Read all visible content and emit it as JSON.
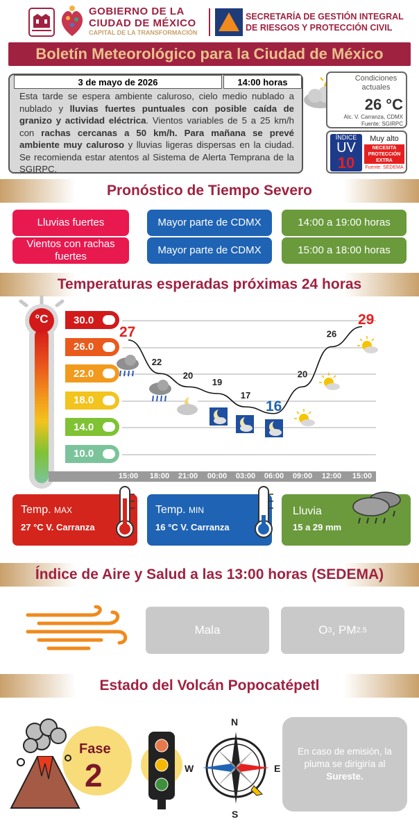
{
  "header": {
    "gob_line1": "GOBIERNO DE LA",
    "gob_line2": "CIUDAD DE MÉXICO",
    "gob_line3": "CAPITAL DE LA TRANSFORMACIÓN",
    "sec_line1": "SECRETARÍA DE GESTIÓN INTEGRAL",
    "sec_line2": "DE RIESGOS Y PROTECCIÓN CIVIL"
  },
  "title": "Boletín Meteorológico para la Ciudad de México",
  "bulletin": {
    "date": "3 de mayo de 2026",
    "time": "14:00 horas",
    "text_html": "Esta tarde se espera ambiente caluroso, cielo medio nublado a nublado y <b>lluvias fuertes puntuales con posible caída de granizo y actividad eléctrica</b>. Vientos variables de 5 a 25 km/h con <b>rachas cercanas a 50 km/h. Para mañana se prevé ambiente muy caluroso</b> y lluvias ligeras dispersas en la ciudad. Se recomienda estar atentos al Sistema de Alerta Temprana de la SGIRPC."
  },
  "current": {
    "label": "Condiciones actuales",
    "temp": "26 °C",
    "place": "Alc. V. Carranza, CDMX",
    "source": "Fuente: SGIRPC"
  },
  "uv": {
    "indice": "ÍNDICE",
    "uv": "UV",
    "value": "10",
    "level": "Muy alto",
    "warning": "NECESITA PROTECCIÓN EXTRA",
    "source": "Fuente: SEDEMA"
  },
  "severe": {
    "title": "Pronóstico de Tiempo Severo",
    "rows": [
      {
        "phenomenon": "Lluvias fuertes",
        "area": "Mayor parte de CDMX",
        "hours": "14:00 a 19:00 horas"
      },
      {
        "phenomenon": "Vientos con rachas fuertes",
        "area": "Mayor parte de CDMX",
        "hours": "15:00 a 18:00 horas"
      }
    ]
  },
  "temps": {
    "title": "Temperaturas esperadas próximas 24 horas",
    "scale": [
      "30.0",
      "26.0",
      "22.0",
      "18.0",
      "14.0",
      "10.0"
    ],
    "scale_colors": [
      "#d21a1a",
      "#ea5a1c",
      "#f29a1d",
      "#f3c31e",
      "#7fc234",
      "#7bc49b"
    ],
    "unit_icon": "°C",
    "hours": [
      "15:00",
      "18:00",
      "21:00",
      "00:00",
      "03:00",
      "06:00",
      "09:00",
      "12:00",
      "15:00"
    ],
    "values": [
      27,
      22,
      20,
      19,
      17,
      16,
      20,
      26,
      29
    ],
    "max_label": "27",
    "min_label": "16",
    "end_label": "29",
    "icons": [
      "rain-cloud-icon",
      "rain-cloud-icon",
      "partly-cloudy-night-icon",
      "moon-cloud-icon",
      "moon-cloud-icon",
      "moon-cloud-icon",
      "sun-cloud-icon",
      "sun-cloud-icon",
      "sun-cloud-icon"
    ]
  },
  "summary": {
    "max": {
      "label": "Temp.",
      "sub": "MAX",
      "value": "27 °C  V. Carranza"
    },
    "min": {
      "label": "Temp.",
      "sub": "MIN",
      "value": "16 °C  V. Carranza"
    },
    "rain": {
      "label": "Lluvia",
      "value": "15 a 29 mm"
    }
  },
  "air": {
    "title": "Índice de Aire y Salud a las 13:00 horas (SEDEMA)",
    "quality": "Mala",
    "pollutant_main1": "O",
    "pollutant_sub1": "3",
    "pollutant_main2": ", PM",
    "pollutant_sub2": "2.5"
  },
  "volcano": {
    "title": "Estado del Volcán Popocatépetl",
    "fase_label": "Fase",
    "fase_value": "2",
    "compass": {
      "n": "N",
      "s": "S",
      "e": "E",
      "w": "W"
    },
    "note_prefix": "En caso de emisión, la pluma se dirigiría al ",
    "note_direction": "Sureste."
  },
  "colors": {
    "maroon": "#9f2241",
    "gold": "#c9a06a",
    "red": "#e8194f",
    "blue": "#1f63b4",
    "green": "#6a9a3c"
  }
}
